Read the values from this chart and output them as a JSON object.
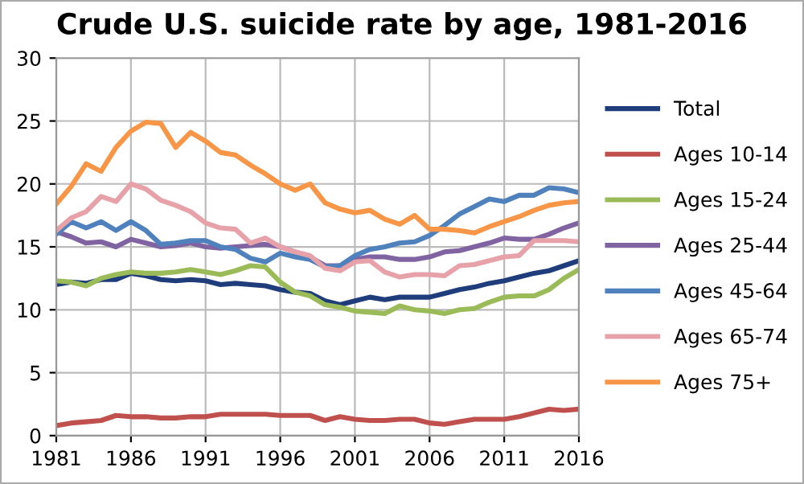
{
  "chart_data": {
    "type": "line",
    "title": "Crude U.S. suicide rate by age, 1981-2016",
    "x": [
      1981,
      1982,
      1983,
      1984,
      1985,
      1986,
      1987,
      1988,
      1989,
      1990,
      1991,
      1992,
      1993,
      1994,
      1995,
      1996,
      1997,
      1998,
      1999,
      2000,
      2001,
      2002,
      2003,
      2004,
      2005,
      2006,
      2007,
      2008,
      2009,
      2010,
      2011,
      2012,
      2013,
      2014,
      2015,
      2016
    ],
    "series": [
      {
        "name": "Total",
        "color": "#1f3d7a",
        "values": [
          12.0,
          12.2,
          12.1,
          12.4,
          12.4,
          12.9,
          12.7,
          12.4,
          12.3,
          12.4,
          12.3,
          12.0,
          12.1,
          12.0,
          11.9,
          11.6,
          11.4,
          11.3,
          10.7,
          10.4,
          10.7,
          11.0,
          10.8,
          11.0,
          11.0,
          11.0,
          11.3,
          11.6,
          11.8,
          12.1,
          12.3,
          12.6,
          12.9,
          13.1,
          13.5,
          13.9
        ]
      },
      {
        "name": "Ages 10-14",
        "color": "#c0504d",
        "values": [
          0.8,
          1.0,
          1.1,
          1.2,
          1.6,
          1.5,
          1.5,
          1.4,
          1.4,
          1.5,
          1.5,
          1.7,
          1.7,
          1.7,
          1.7,
          1.6,
          1.6,
          1.6,
          1.2,
          1.5,
          1.3,
          1.2,
          1.2,
          1.3,
          1.3,
          1.0,
          0.9,
          1.1,
          1.3,
          1.3,
          1.3,
          1.5,
          1.8,
          2.1,
          2.0,
          2.1
        ]
      },
      {
        "name": "Ages 15-24",
        "color": "#9bbb59",
        "values": [
          12.3,
          12.2,
          11.9,
          12.5,
          12.8,
          13.0,
          12.9,
          12.9,
          13.0,
          13.2,
          13.0,
          12.8,
          13.1,
          13.5,
          13.4,
          12.2,
          11.4,
          11.1,
          10.4,
          10.2,
          9.9,
          9.8,
          9.7,
          10.3,
          10.0,
          9.9,
          9.7,
          10.0,
          10.1,
          10.6,
          11.0,
          11.1,
          11.1,
          11.6,
          12.5,
          13.2
        ]
      },
      {
        "name": "Ages 25-44",
        "color": "#8064a2",
        "values": [
          16.2,
          15.8,
          15.3,
          15.4,
          15.0,
          15.6,
          15.3,
          15.0,
          15.1,
          15.3,
          15.0,
          14.9,
          15.0,
          15.1,
          15.2,
          15.0,
          14.6,
          14.2,
          13.5,
          13.5,
          14.0,
          14.2,
          14.2,
          14.0,
          14.0,
          14.2,
          14.6,
          14.7,
          15.0,
          15.3,
          15.7,
          15.6,
          15.6,
          16.0,
          16.5,
          16.9
        ]
      },
      {
        "name": "Ages 45-64",
        "color": "#4f81bd",
        "values": [
          16.0,
          17.0,
          16.5,
          17.0,
          16.3,
          17.0,
          16.3,
          15.2,
          15.3,
          15.5,
          15.5,
          15.0,
          14.8,
          14.1,
          13.8,
          14.5,
          14.2,
          14.0,
          13.4,
          13.5,
          14.3,
          14.8,
          15.0,
          15.3,
          15.4,
          15.9,
          16.7,
          17.6,
          18.2,
          18.8,
          18.6,
          19.1,
          19.1,
          19.7,
          19.6,
          19.3
        ]
      },
      {
        "name": "Ages 65-74",
        "color": "#e6a2a8",
        "values": [
          16.3,
          17.3,
          17.8,
          19.0,
          18.6,
          20.0,
          19.6,
          18.7,
          18.3,
          17.8,
          16.9,
          16.5,
          16.4,
          15.3,
          15.7,
          15.0,
          14.6,
          14.3,
          13.3,
          13.1,
          13.8,
          13.9,
          13.0,
          12.6,
          12.8,
          12.8,
          12.7,
          13.5,
          13.6,
          13.9,
          14.2,
          14.3,
          15.5,
          15.5,
          15.5,
          15.4
        ]
      },
      {
        "name": "Ages 75+",
        "color": "#f79646",
        "values": [
          18.4,
          19.8,
          21.6,
          21.0,
          22.9,
          24.2,
          24.9,
          24.8,
          22.9,
          24.1,
          23.4,
          22.5,
          22.3,
          21.5,
          20.8,
          20.0,
          19.5,
          20.0,
          18.5,
          18.0,
          17.7,
          17.9,
          17.2,
          16.8,
          17.5,
          16.4,
          16.4,
          16.3,
          16.1,
          16.6,
          17.0,
          17.4,
          17.9,
          18.3,
          18.5,
          18.6
        ]
      }
    ],
    "xlim": [
      1981,
      2016
    ],
    "xticks": [
      1981,
      1986,
      1991,
      1996,
      2001,
      2006,
      2011,
      2016
    ],
    "ylim": [
      0,
      30
    ],
    "yticks": [
      0,
      5,
      10,
      15,
      20,
      25,
      30
    ],
    "grid": true,
    "legend": "right",
    "marker": "none",
    "line_style": "solid"
  }
}
